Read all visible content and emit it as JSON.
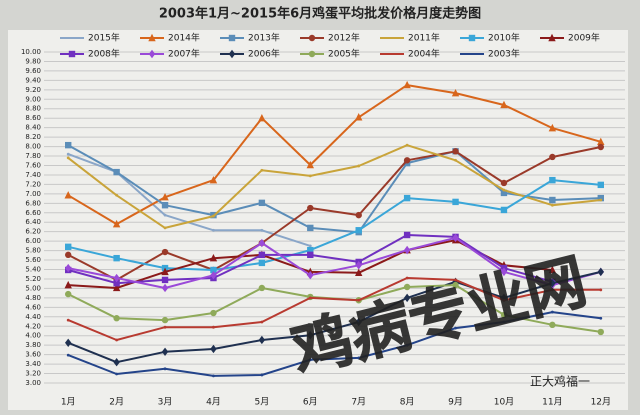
{
  "chart_data": {
    "type": "line",
    "title": "2003年1月~2015年6月鸡蛋平均批发价格月度走势图",
    "annotations": [
      "鸡病专业网",
      "正大鸡福一"
    ],
    "categories": [
      "1月",
      "2月",
      "3月",
      "4月",
      "5月",
      "6月",
      "7月",
      "8月",
      "9月",
      "10月",
      "11月",
      "12月"
    ],
    "ylim": [
      3,
      10
    ],
    "yticks": [
      {
        "value": 3,
        "label": "3.00"
      },
      {
        "value": 3.2,
        "label": "3.20"
      },
      {
        "value": 3.4,
        "label": "3.40"
      },
      {
        "value": 3.6,
        "label": "3.60"
      },
      {
        "value": 3.8,
        "label": "3.80"
      },
      {
        "value": 4,
        "label": "4.00"
      },
      {
        "value": 4.2,
        "label": "4.20"
      },
      {
        "value": 4.4,
        "label": "4.40"
      },
      {
        "value": 4.6,
        "label": "4.60"
      },
      {
        "value": 4.8,
        "label": "4.80"
      },
      {
        "value": 5,
        "label": "5.00"
      },
      {
        "value": 5.2,
        "label": "5.20"
      },
      {
        "value": 5.4,
        "label": "5.40"
      },
      {
        "value": 5.6,
        "label": "5.60"
      },
      {
        "value": 5.8,
        "label": "5.80"
      },
      {
        "value": 6,
        "label": "6.00"
      },
      {
        "value": 6.2,
        "label": "6.20"
      },
      {
        "value": 6.4,
        "label": "6.40"
      },
      {
        "value": 6.6,
        "label": "6.60"
      },
      {
        "value": 6.8,
        "label": "6.80"
      },
      {
        "value": 7,
        "label": "7.00"
      },
      {
        "value": 7.2,
        "label": "7.20"
      },
      {
        "value": 7.4,
        "label": "7.40"
      },
      {
        "value": 7.6,
        "label": "7.60"
      },
      {
        "value": 7.8,
        "label": "7.80"
      },
      {
        "value": 8,
        "label": "8.00"
      },
      {
        "value": 8.2,
        "label": "8.20"
      },
      {
        "value": 8.4,
        "label": "8.40"
      },
      {
        "value": 8.6,
        "label": "8.60"
      },
      {
        "value": 8.8,
        "label": "8.80"
      },
      {
        "value": 9,
        "label": "9.00"
      },
      {
        "value": 9.2,
        "label": "9.20"
      },
      {
        "value": 9.4,
        "label": "9.40"
      },
      {
        "value": 9.6,
        "label": "9.60"
      },
      {
        "value": 9.8,
        "label": "9.80"
      },
      {
        "value": 10,
        "label": "10.00"
      }
    ],
    "grid": true,
    "series": [
      {
        "name": "2015年",
        "color": "#8aa6c8",
        "marker": "none",
        "values": [
          7.84,
          7.46,
          6.55,
          6.23,
          6.23,
          5.9,
          null,
          null,
          null,
          null,
          null,
          null
        ]
      },
      {
        "name": "2014年",
        "color": "#d8661c",
        "marker": "triangle",
        "values": [
          6.97,
          6.36,
          6.93,
          7.29,
          8.6,
          7.61,
          8.62,
          9.3,
          9.13,
          8.88,
          8.39,
          8.1
        ]
      },
      {
        "name": "2013年",
        "color": "#5b8db8",
        "marker": "square",
        "values": [
          8.03,
          7.46,
          6.76,
          6.55,
          6.81,
          6.28,
          6.19,
          7.65,
          7.9,
          7.02,
          6.87,
          6.91
        ]
      },
      {
        "name": "2012年",
        "color": "#9a3a2a",
        "marker": "circle",
        "values": [
          5.71,
          5.18,
          5.77,
          5.39,
          5.96,
          6.7,
          6.55,
          7.71,
          7.9,
          7.23,
          7.78,
          7.99
        ]
      },
      {
        "name": "2011年",
        "color": "#c9a43a",
        "marker": "none",
        "values": [
          7.76,
          6.97,
          6.28,
          6.53,
          7.5,
          7.38,
          7.59,
          8.03,
          7.71,
          7.08,
          6.76,
          6.87
        ]
      },
      {
        "name": "2010年",
        "color": "#3aa6d8",
        "marker": "square",
        "values": [
          5.88,
          5.64,
          5.43,
          5.39,
          5.54,
          5.81,
          6.23,
          6.91,
          6.83,
          6.66,
          7.29,
          7.19
        ]
      },
      {
        "name": "2009年",
        "color": "#8b1a1a",
        "marker": "triangle",
        "values": [
          5.07,
          5.01,
          5.35,
          5.64,
          5.71,
          5.35,
          5.33,
          5.81,
          6.02,
          5.49,
          5.39,
          null
        ]
      },
      {
        "name": "2008年",
        "color": "#7030c0",
        "marker": "square",
        "values": [
          5.39,
          5.11,
          5.18,
          5.22,
          5.71,
          5.71,
          5.56,
          6.13,
          6.09,
          5.43,
          5.14,
          null
        ]
      },
      {
        "name": "2007年",
        "color": "#9a4ad8",
        "marker": "diamond",
        "values": [
          5.43,
          5.22,
          5.01,
          5.28,
          5.96,
          5.28,
          5.49,
          5.81,
          6.07,
          5.35,
          5.07,
          5.35
        ]
      },
      {
        "name": "2006年",
        "color": "#1f3050",
        "marker": "diamond",
        "values": [
          3.85,
          3.44,
          3.66,
          3.72,
          3.91,
          4.01,
          4.29,
          4.8,
          5.14,
          4.8,
          5.11,
          5.35
        ]
      },
      {
        "name": "2005年",
        "color": "#8faa5a",
        "marker": "circle",
        "values": [
          4.88,
          4.37,
          4.33,
          4.48,
          5.01,
          4.82,
          4.75,
          5.03,
          5.07,
          4.44,
          4.23,
          4.08
        ]
      },
      {
        "name": "2004年",
        "color": "#b83a30",
        "marker": "none",
        "values": [
          4.33,
          3.91,
          4.18,
          4.18,
          4.29,
          4.8,
          4.75,
          5.22,
          5.18,
          4.75,
          4.97,
          4.97
        ]
      },
      {
        "name": "2003年",
        "color": "#24448a",
        "marker": "none",
        "values": [
          3.59,
          3.19,
          3.3,
          3.15,
          3.17,
          3.49,
          3.53,
          3.8,
          4.16,
          4.29,
          4.5,
          4.37
        ]
      }
    ]
  }
}
